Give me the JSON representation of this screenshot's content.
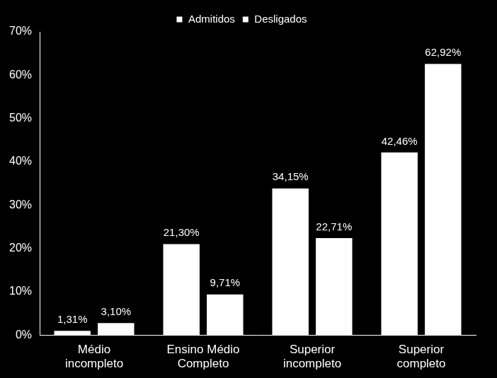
{
  "chart_data": {
    "type": "bar",
    "categories": [
      [
        "Médio",
        "incompleto"
      ],
      [
        "Ensino Médio",
        "Completo"
      ],
      [
        "Superior",
        "incompleto"
      ],
      [
        "Superior",
        "completo"
      ]
    ],
    "series": [
      {
        "name": "Admitidos",
        "color": "#ffffff",
        "values": [
          1.31,
          21.3,
          34.15,
          42.46
        ],
        "value_labels": [
          "1,31%",
          "21,30%",
          "34,15%",
          "42,46%"
        ]
      },
      {
        "name": "Desligados",
        "color": "#ffffff",
        "values": [
          3.1,
          9.71,
          22.71,
          62.92
        ],
        "value_labels": [
          "3,10%",
          "9,71%",
          "22,71%",
          "62,92%"
        ]
      }
    ],
    "ylim": [
      0,
      70
    ],
    "yticks": [
      {
        "value": 0,
        "label": "0%"
      },
      {
        "value": 10,
        "label": "10%"
      },
      {
        "value": 20,
        "label": "20%"
      },
      {
        "value": 30,
        "label": "30%"
      },
      {
        "value": 40,
        "label": "40%"
      },
      {
        "value": 50,
        "label": "50%"
      },
      {
        "value": 60,
        "label": "60%"
      },
      {
        "value": 70,
        "label": "70%"
      }
    ],
    "grid": false,
    "legend": "top",
    "data_labels": true
  }
}
